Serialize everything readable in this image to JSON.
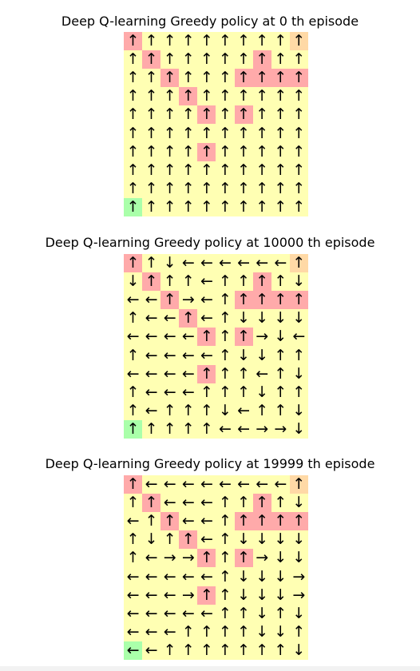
{
  "colors": {
    "normal": "#ffffb3",
    "trap": "#ffaaaa",
    "goal": "#ffd9a6",
    "start": "#aaffaa"
  },
  "legend": {
    "U": "↑",
    "D": "↓",
    "L": "←",
    "R": "→"
  },
  "cell_types": [
    "TNNNNNNNNG",
    "NTNNNNNTNN",
    "NNTNNNTTTT",
    "NNNTNNNNNN",
    "NNNNTNTNNN",
    "NNNNNNNNNN",
    "NNNNTNNNNN",
    "NNNNNNNNNN",
    "NNNNNNNNNN",
    "SNNNNNNNNN"
  ],
  "panels": [
    {
      "title": "Deep Q-learning Greedy policy at 0 th episode",
      "policy": [
        "UUUUUUUUUU",
        "UUUUUUUUUU",
        "UUUUUUUUUU",
        "UUUUUUUUUU",
        "UUUUUUUUUU",
        "UUUUUUUUUU",
        "UUUUUUUUUU",
        "UUUUUUUUUU",
        "UUUUUUUUUU",
        "UUUUUUUUUU"
      ]
    },
    {
      "title": "Deep Q-learning Greedy policy at 10000 th episode",
      "policy": [
        "UUDLLLLLLU",
        "DUUULUUUUD",
        "LLURLUUUUU",
        "ULLULUDDDD",
        "LLLLUUURDL",
        "ULLLLUDDUU",
        "LLLLUUULUD",
        "ULLLUUUDUU",
        "ULUUUDLUUD",
        "UUUUULLRRD"
      ]
    },
    {
      "title": "Deep Q-learning Greedy policy at 19999 th episode",
      "policy": [
        "ULLLLLLLLU",
        "UULLLUUUUD",
        "LUULLUUUUU",
        "UDUULUDDDD",
        "ULRRUUURDD",
        "LLLLLUDDDR",
        "LLLRUUDDDR",
        "LLLLLUUDUD",
        "LLLUUUUDDU",
        "LLUUUUUUUD"
      ]
    }
  ]
}
